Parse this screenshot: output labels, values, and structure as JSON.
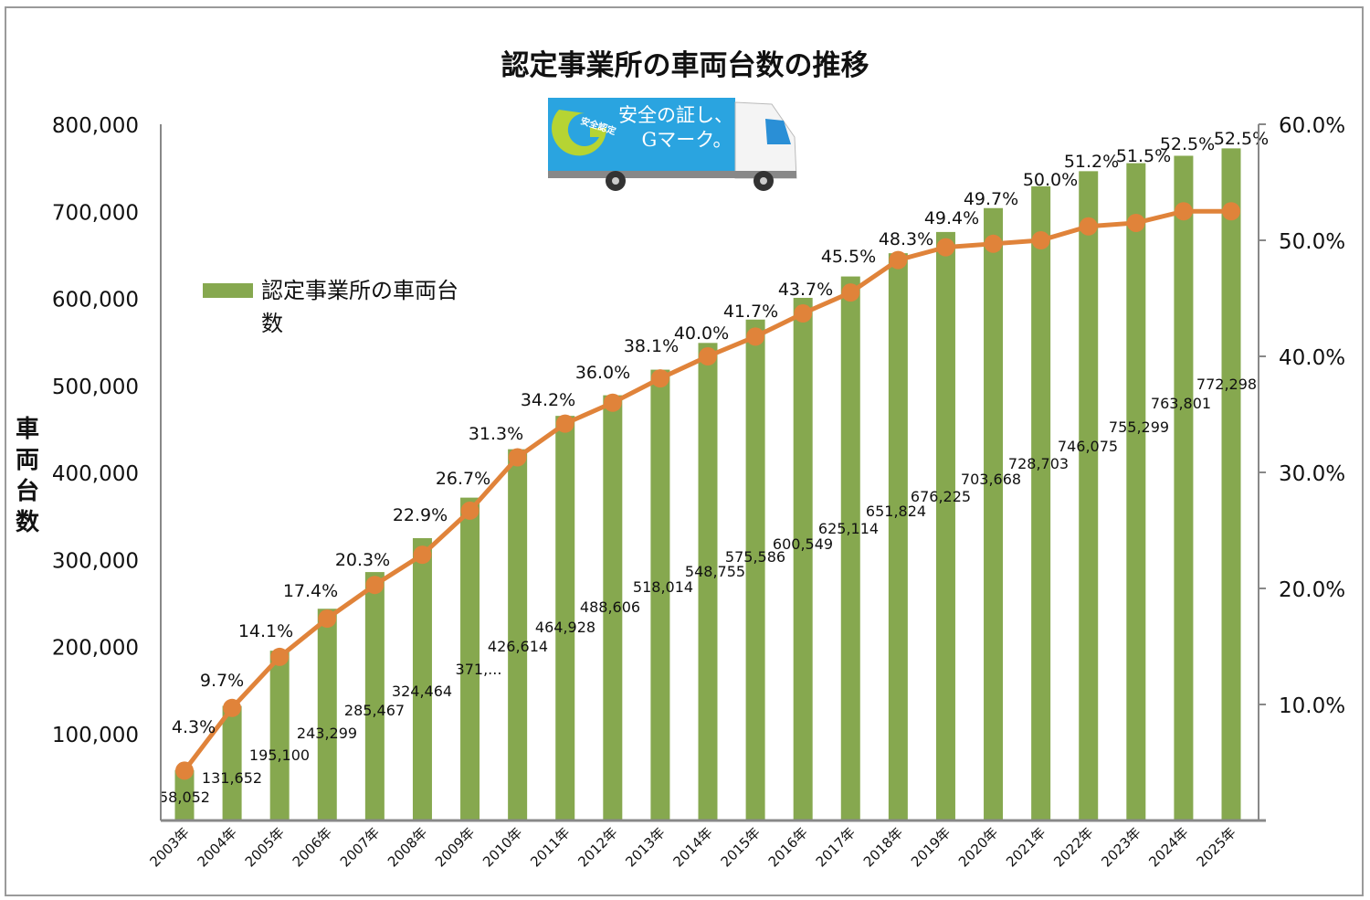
{
  "chart_data": {
    "type": "bar",
    "title": "認定事業所の車両台数の推移",
    "ylabel": "車両台数",
    "ylim": [
      0,
      800000
    ],
    "y2lim": [
      0,
      60
    ],
    "yticks": [
      "100,000",
      "200,000",
      "300,000",
      "400,000",
      "500,000",
      "600,000",
      "700,000",
      "800,000"
    ],
    "y2ticks": [
      "10.0%",
      "20.0%",
      "30.0%",
      "40.0%",
      "50.0%",
      "60.0%"
    ],
    "legend": {
      "label": "認定事業所の車両台数",
      "placement": "left"
    },
    "categories": [
      "2003年",
      "2004年",
      "2005年",
      "2006年",
      "2007年",
      "2008年",
      "2009年",
      "2010年",
      "2011年",
      "2012年",
      "2013年",
      "2014年",
      "2015年",
      "2016年",
      "2017年",
      "2018年",
      "2019年",
      "2020年",
      "2021年",
      "2022年",
      "2023年",
      "2024年",
      "2025年"
    ],
    "series": [
      {
        "name": "認定事業所の車両台数",
        "type": "bar",
        "axis": "left",
        "color": "#86a84f",
        "values": [
          58052,
          131652,
          195100,
          243299,
          285467,
          324464,
          371000,
          426614,
          464928,
          488606,
          518014,
          548755,
          575586,
          600549,
          625114,
          651824,
          676225,
          703668,
          728703,
          746075,
          755299,
          763801,
          772298
        ],
        "labels": [
          "58,052",
          "131,652",
          "195,100",
          "243,299",
          "285,467",
          "324,464",
          "371,...",
          "426,614",
          "464,928",
          "488,606",
          "518,014",
          "548,755",
          "575,586",
          "600,549",
          "625,114",
          "651,824",
          "676,225",
          "703,668",
          "728,703",
          "746,075",
          "755,299",
          "763,801",
          "772,298"
        ]
      },
      {
        "type": "line",
        "axis": "right",
        "color": "#e0833a",
        "values": [
          4.3,
          9.7,
          14.1,
          17.4,
          20.3,
          22.9,
          26.7,
          31.3,
          34.2,
          36.0,
          38.1,
          40.0,
          41.7,
          43.7,
          45.5,
          48.3,
          49.4,
          49.7,
          50.0,
          51.2,
          51.5,
          52.5,
          52.5
        ],
        "labels": [
          "4.3%",
          "9.7%",
          "14.1%",
          "17.4%",
          "20.3%",
          "22.9%",
          "26.7%",
          "31.3%",
          "34.2%",
          "36.0%",
          "38.1%",
          "40.0%",
          "41.7%",
          "43.7%",
          "45.5%",
          "48.3%",
          "49.4%",
          "49.7%",
          "50.0%",
          "51.2%",
          "51.5%",
          "52.5%",
          "52.5%"
        ]
      }
    ],
    "grid": false
  },
  "logo": {
    "badge": "安全認定",
    "line1": "安全の証し、",
    "line2": "Gマーク。"
  }
}
